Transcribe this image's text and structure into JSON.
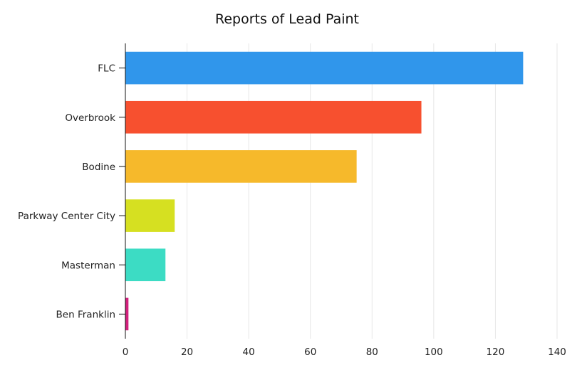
{
  "chart_data": {
    "type": "bar",
    "orientation": "horizontal",
    "title": "Reports of Lead Paint",
    "xlabel": "",
    "ylabel": "",
    "categories": [
      "FLC",
      "Overbrook",
      "Bodine",
      "Parkway Center City",
      "Masterman",
      "Ben Franklin"
    ],
    "values": [
      129,
      96,
      75,
      16,
      13,
      1
    ],
    "colors": [
      "#3096eb",
      "#f7502f",
      "#f6b92b",
      "#d6e021",
      "#3cdcc4",
      "#d21f7c"
    ],
    "xlim": [
      0,
      140
    ],
    "xticks": [
      0,
      20,
      40,
      60,
      80,
      100,
      120,
      140
    ],
    "grid": true,
    "legend": "none"
  }
}
